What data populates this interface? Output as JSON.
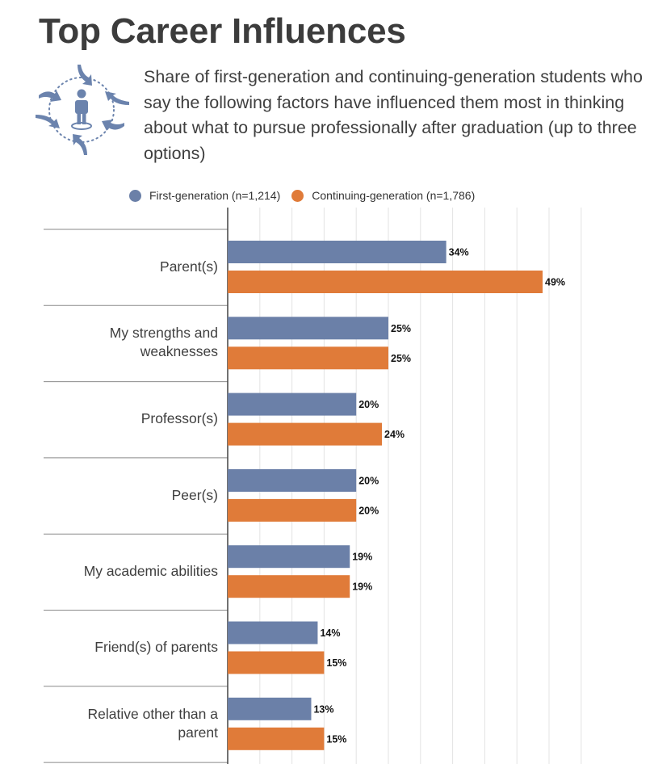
{
  "header": {
    "title": "Top Career Influences",
    "subtitle": "Share of first-generation and continuing-generation students who say the following factors have influenced them most in thinking about what to pursue professionally after graduation (up to three options)",
    "emblem_icon": "person-circle-arrows-icon"
  },
  "legend": {
    "first_label": "First-generation (n=1,214)",
    "continuing_label": "Continuing-generation (n=1,786)"
  },
  "colors": {
    "first": "#6b80a8",
    "continuing": "#e07b39",
    "icon": "#6b83ad"
  },
  "chart_data": {
    "type": "bar",
    "orientation": "horizontal",
    "title": "Top Career Influences",
    "categories": [
      "Parent(s)",
      "My strengths and weaknesses",
      "Professor(s)",
      "Peer(s)",
      "My academic abilities",
      "Friend(s) of parents",
      "Relative other than a parent"
    ],
    "category_lines": [
      [
        "Parent(s)"
      ],
      [
        "My strengths and",
        "weaknesses"
      ],
      [
        "Professor(s)"
      ],
      [
        "Peer(s)"
      ],
      [
        "My academic abilities"
      ],
      [
        "Friend(s) of parents"
      ],
      [
        "Relative other than a",
        "parent"
      ]
    ],
    "series": [
      {
        "name": "First-generation (n=1,214)",
        "values": [
          34,
          25,
          20,
          20,
          19,
          14,
          13
        ]
      },
      {
        "name": "Continuing-generation (n=1,786)",
        "values": [
          49,
          25,
          24,
          20,
          19,
          15,
          15
        ]
      }
    ],
    "value_suffix": "%",
    "xlim": [
      0,
      55
    ],
    "grid": true,
    "legend_position": "top"
  }
}
